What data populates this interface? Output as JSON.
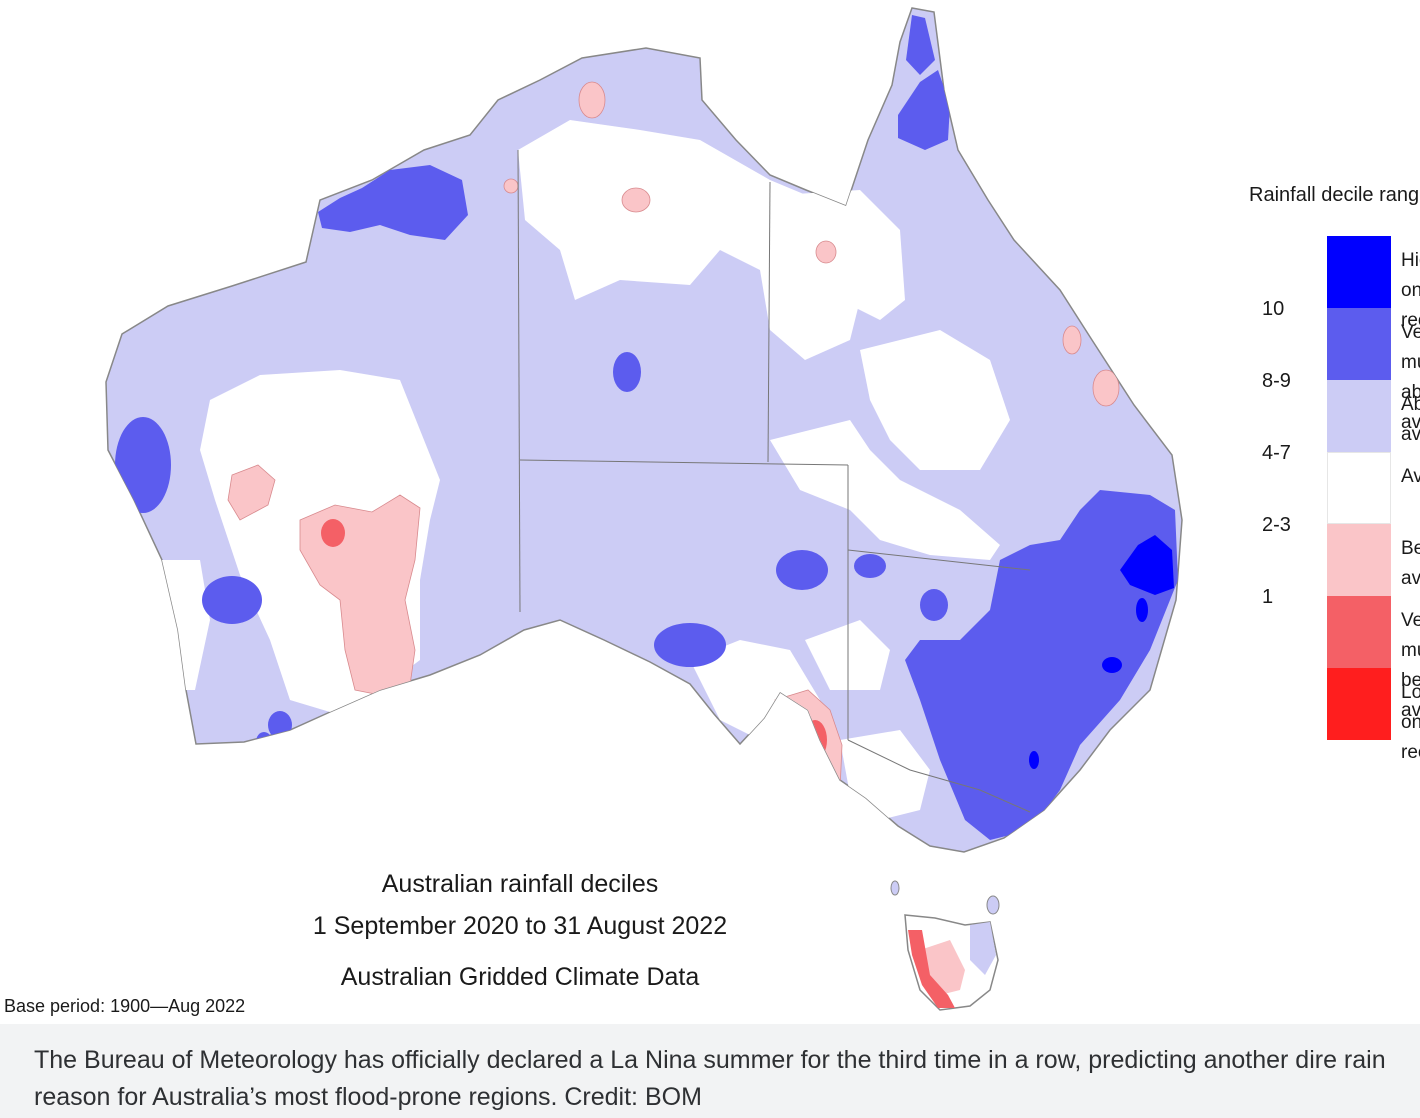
{
  "figure": {
    "title_lines": [
      "Australian rainfall deciles",
      "1 September 2020 to 31 August 2022",
      "Australian Gridded Climate Data"
    ],
    "base_period": "Base period: 1900—Aug 2022"
  },
  "legend": {
    "title": "Rainfall decile ranges",
    "items": [
      {
        "decile": "",
        "description": "Highest on record",
        "color": "#0000ff"
      },
      {
        "decile": "10",
        "description": "Very much above average",
        "color": "#5c5cee"
      },
      {
        "decile": "8-9",
        "description": "Above average",
        "color": "#ccccf5"
      },
      {
        "decile": "4-7",
        "description": "Average",
        "color": "#ffffff"
      },
      {
        "decile": "2-3",
        "description": "Below average",
        "color": "#fac5c8"
      },
      {
        "decile": "1",
        "description": "Very much below average",
        "color": "#f46066"
      },
      {
        "decile": "",
        "description": "Lowest on record",
        "color": "#ff1e1e"
      }
    ]
  },
  "colors": {
    "coast": "#888888",
    "state_border": "#777777"
  },
  "caption": {
    "text": "The Bureau of Meteorology has officially declared a La Nina summer for the third time in a row, predicting another dire rain reason for Australia’s most flood-prone regions. Credit: BOM"
  }
}
